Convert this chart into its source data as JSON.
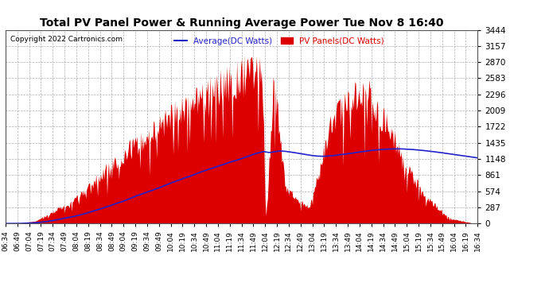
{
  "title": "Total PV Panel Power & Running Average Power Tue Nov 8 16:40",
  "copyright": "Copyright 2022 Cartronics.com",
  "legend_avg": "Average(DC Watts)",
  "legend_pv": "PV Panels(DC Watts)",
  "ymin": 0.0,
  "ymax": 3444.3,
  "yticks": [
    0.0,
    287.0,
    574.0,
    861.1,
    1148.1,
    1435.1,
    1722.1,
    2009.2,
    2296.2,
    2583.2,
    2870.2,
    3157.3,
    3444.3
  ],
  "pv_color": "#dd0000",
  "avg_color": "#2222cc",
  "bg_color": "#ffffff",
  "grid_color": "#999999",
  "title_color": "#000000",
  "copyright_color": "#000000",
  "legend_avg_color": "#2222cc",
  "legend_pv_color": "#dd0000",
  "xtick_start_h": 6,
  "xtick_start_m": 34,
  "xtick_end_h": 16,
  "xtick_end_m": 34,
  "xtick_interval_min": 15
}
